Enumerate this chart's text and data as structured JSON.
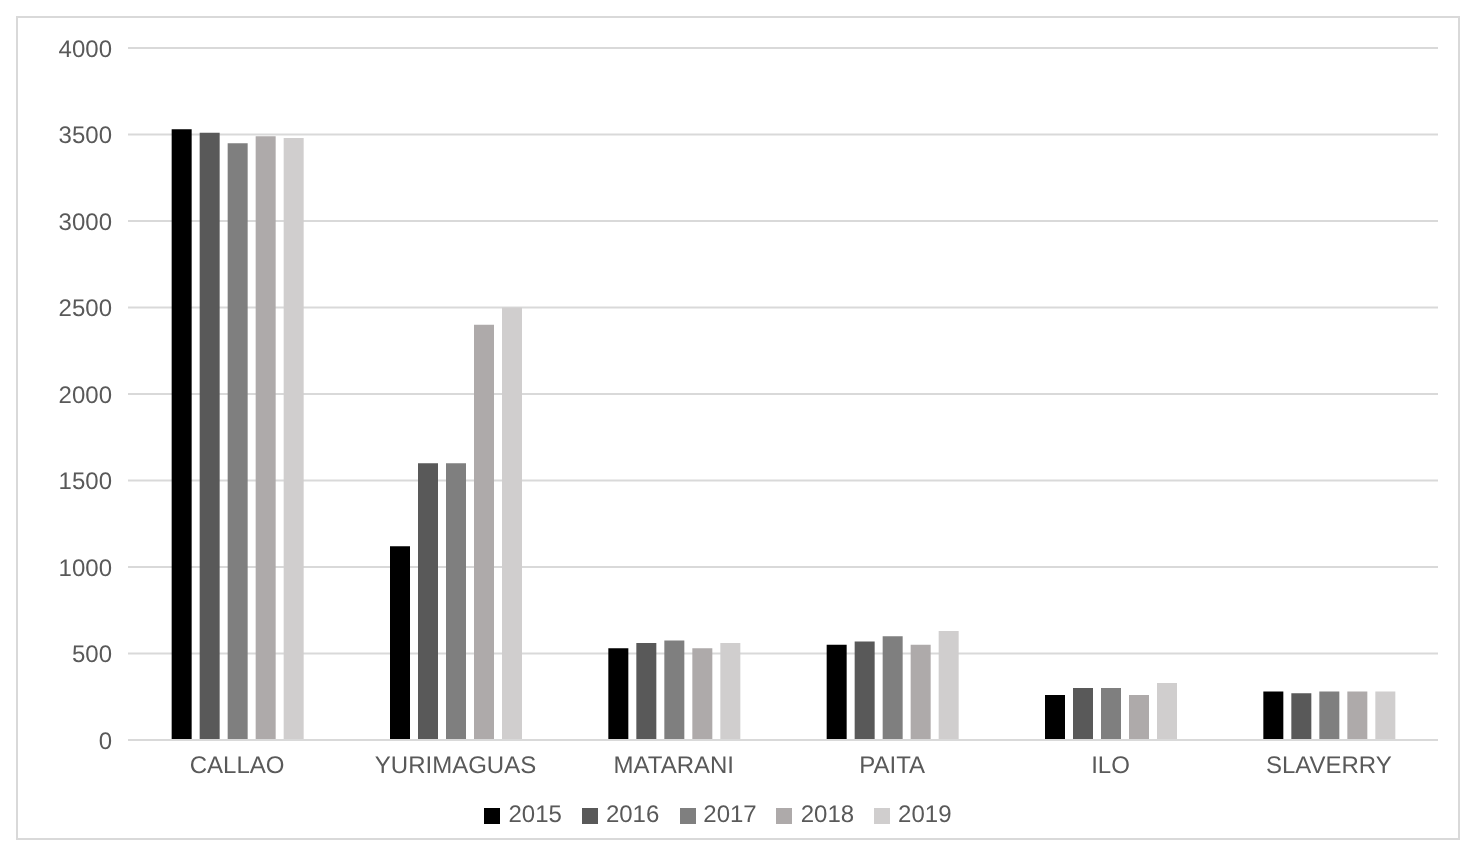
{
  "chart_data": {
    "type": "bar",
    "categories": [
      "CALLAO",
      "YURIMAGUAS",
      "MATARANI",
      "PAITA",
      "ILO",
      "SLAVERRY"
    ],
    "series": [
      {
        "name": "2015",
        "color": "#000000",
        "values": [
          3530,
          1120,
          530,
          550,
          260,
          280
        ]
      },
      {
        "name": "2016",
        "color": "#595959",
        "values": [
          3510,
          1600,
          560,
          570,
          300,
          270
        ]
      },
      {
        "name": "2017",
        "color": "#7f7f7f",
        "values": [
          3450,
          1600,
          575,
          600,
          300,
          280
        ]
      },
      {
        "name": "2018",
        "color": "#aeaaaa",
        "values": [
          3490,
          2400,
          530,
          550,
          260,
          280
        ]
      },
      {
        "name": "2019",
        "color": "#d0cece",
        "values": [
          3480,
          2500,
          560,
          630,
          330,
          280
        ]
      }
    ],
    "ylim": [
      0,
      4000
    ],
    "yticks": [
      0,
      500,
      1000,
      1500,
      2000,
      2500,
      3000,
      3500,
      4000
    ],
    "grid": "y",
    "legend": "bottom"
  }
}
